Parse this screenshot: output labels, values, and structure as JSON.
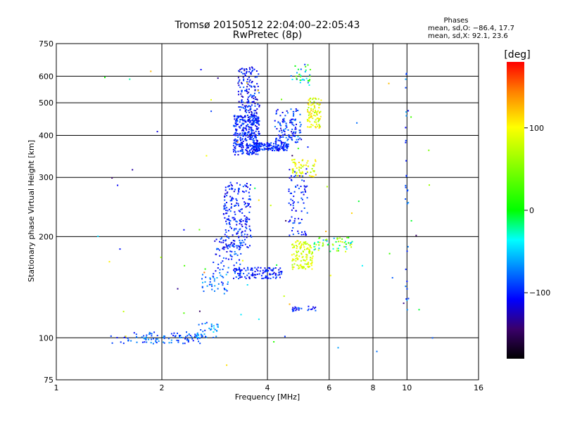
{
  "chart_data": {
    "type": "scatter",
    "title": "Tromsø 20150512 22:04:00–22:05:43",
    "subtitle": "RwPretec (8p)",
    "xlabel": "Frequency [MHz]",
    "ylabel": "Stationary phase Virtual Height [km]",
    "x_scale": "log",
    "y_scale": "log",
    "xlim": [
      1,
      16
    ],
    "ylim": [
      75,
      750
    ],
    "x_ticks": [
      1,
      2,
      4,
      6,
      8,
      10,
      16
    ],
    "x_tick_labels": [
      "1",
      "2",
      "4",
      "6",
      "8",
      "10",
      "16"
    ],
    "y_ticks": [
      75,
      100,
      200,
      300,
      400,
      500,
      600,
      750
    ],
    "y_tick_labels": [
      "75",
      "100",
      "200",
      "300",
      "400",
      "500",
      "600",
      "750"
    ],
    "grid": true,
    "legend": {
      "title": "Phases",
      "line1": "mean, sd,O: −86.4, 17.7",
      "line2": "mean, sd,X:  92.1, 23.6",
      "placement": "top-right"
    },
    "colorbar": {
      "label": "[deg]",
      "ticks": [
        100,
        0,
        -100
      ],
      "tick_labels": [
        "100",
        "0",
        "−100"
      ],
      "range": [
        -180,
        180
      ],
      "colors": [
        "#000000",
        "#3a006a",
        "#0000ff",
        "#00ffff",
        "#00ff00",
        "#ffff00",
        "#ff8000",
        "#ff0000"
      ]
    },
    "clusters": [
      {
        "x": [
          1.4,
          1.6
        ],
        "y": [
          95,
          102
        ],
        "n": 8,
        "phase": [
          -120,
          -80
        ]
      },
      {
        "x": [
          1.6,
          2.6
        ],
        "y": [
          96,
          104
        ],
        "n": 90,
        "phase": [
          -110,
          -60
        ]
      },
      {
        "x": [
          2.5,
          2.9
        ],
        "y": [
          100,
          112
        ],
        "n": 40,
        "phase": [
          -100,
          -40
        ]
      },
      {
        "x": [
          2.6,
          3.1
        ],
        "y": [
          135,
          155
        ],
        "n": 40,
        "phase": [
          -100,
          -50
        ]
      },
      {
        "x": [
          2.8,
          3.4
        ],
        "y": [
          155,
          200
        ],
        "n": 80,
        "phase": [
          -120,
          -70
        ]
      },
      {
        "x": [
          3.0,
          3.6
        ],
        "y": [
          185,
          290
        ],
        "n": 200,
        "phase": [
          -120,
          -80
        ]
      },
      {
        "x": [
          3.2,
          4.4
        ],
        "y": [
          150,
          162
        ],
        "n": 120,
        "phase": [
          -120,
          -80
        ]
      },
      {
        "x": [
          3.2,
          3.8
        ],
        "y": [
          350,
          460
        ],
        "n": 350,
        "phase": [
          -120,
          -80
        ]
      },
      {
        "x": [
          3.3,
          3.8
        ],
        "y": [
          460,
          640
        ],
        "n": 150,
        "phase": [
          -130,
          -80
        ]
      },
      {
        "x": [
          3.6,
          4.6
        ],
        "y": [
          360,
          380
        ],
        "n": 150,
        "phase": [
          -120,
          -80
        ]
      },
      {
        "x": [
          4.2,
          5.0
        ],
        "y": [
          380,
          480
        ],
        "n": 120,
        "phase": [
          -120,
          -70
        ]
      },
      {
        "x": [
          4.6,
          5.2
        ],
        "y": [
          200,
          320
        ],
        "n": 80,
        "phase": [
          -120,
          -80
        ]
      },
      {
        "x": [
          4.7,
          5.4
        ],
        "y": [
          160,
          195
        ],
        "n": 120,
        "phase": [
          60,
          110
        ]
      },
      {
        "x": [
          4.7,
          5.5
        ],
        "y": [
          300,
          340
        ],
        "n": 60,
        "phase": [
          60,
          120
        ]
      },
      {
        "x": [
          5.2,
          5.7
        ],
        "y": [
          420,
          520
        ],
        "n": 90,
        "phase": [
          60,
          120
        ]
      },
      {
        "x": [
          5.4,
          7.0
        ],
        "y": [
          180,
          200
        ],
        "n": 60,
        "phase": [
          -60,
          100
        ]
      },
      {
        "x": [
          4.7,
          5.5
        ],
        "y": [
          120,
          124
        ],
        "n": 25,
        "phase": [
          -120,
          -80
        ]
      },
      {
        "x": [
          4.8,
          5.3
        ],
        "y": [
          560,
          650
        ],
        "n": 30,
        "phase": [
          -100,
          50
        ]
      },
      {
        "x": [
          9.9,
          10.1
        ],
        "y": [
          120,
          650
        ],
        "n": 30,
        "phase": [
          -110,
          -60
        ]
      },
      {
        "x": [
          1.3,
          12
        ],
        "y": [
          80,
          650
        ],
        "n": 70,
        "phase": [
          -150,
          150
        ]
      }
    ]
  }
}
